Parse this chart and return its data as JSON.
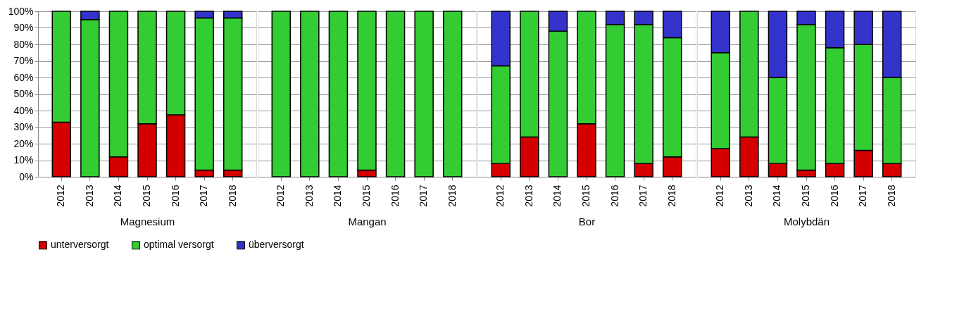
{
  "chart_data": [
    {
      "type": "bar",
      "stacked": true,
      "xlabel": "Magnesium",
      "categories": [
        "2012",
        "2013",
        "2014",
        "2015",
        "2016",
        "2017",
        "2018"
      ],
      "ylim": [
        0,
        100
      ],
      "yticks": [
        {
          "value": 0,
          "label": "0%"
        },
        {
          "value": 10,
          "label": "10%"
        },
        {
          "value": 20,
          "label": "20%"
        },
        {
          "value": 30,
          "label": "30%"
        },
        {
          "value": 40,
          "label": "40%"
        },
        {
          "value": 50,
          "label": "50%"
        },
        {
          "value": 60,
          "label": "60%"
        },
        {
          "value": 70,
          "label": "70%"
        },
        {
          "value": 80,
          "label": "80%"
        },
        {
          "value": 90,
          "label": "90%"
        },
        {
          "value": 100,
          "label": "100%"
        }
      ],
      "grid": "y",
      "legend": "bottom",
      "series": [
        {
          "name": "unterversorgt",
          "color": "#d40000",
          "values": [
            33,
            null,
            12,
            32,
            37.5,
            4,
            4
          ]
        },
        {
          "name": "optimal versorgt",
          "color": "#33cc33",
          "values": [
            67,
            95,
            88,
            68,
            62.5,
            92,
            92
          ]
        },
        {
          "name": "überversorgt",
          "color": "#3333cc",
          "values": [
            null,
            5,
            null,
            null,
            null,
            4,
            4
          ]
        }
      ]
    },
    {
      "type": "bar",
      "stacked": true,
      "xlabel": "Mangan",
      "categories": [
        "2012",
        "2013",
        "2014",
        "2015",
        "2016",
        "2017",
        "2018"
      ],
      "ylim": [
        0,
        100
      ],
      "yticks": [
        0,
        10,
        20,
        30,
        40,
        50,
        60,
        70,
        80,
        90,
        100
      ],
      "grid": "y",
      "legend": "bottom",
      "tick_labels": "x",
      "series": [
        {
          "name": "unterversorgt",
          "color": "#d40000",
          "values": [
            null,
            null,
            null,
            4,
            null,
            null,
            null
          ]
        },
        {
          "name": "optimal versorgt",
          "color": "#33cc33",
          "values": [
            100,
            100,
            100,
            96,
            100,
            100,
            100
          ]
        },
        {
          "name": "überversorgt",
          "color": "#3333cc",
          "values": [
            null,
            null,
            null,
            null,
            null,
            null,
            null
          ]
        }
      ]
    },
    {
      "type": "bar",
      "stacked": true,
      "xlabel": "Bor",
      "categories": [
        "2012",
        "2013",
        "2014",
        "2015",
        "2016",
        "2017",
        "2018"
      ],
      "ylim": [
        0,
        100
      ],
      "yticks": [
        0,
        10,
        20,
        30,
        40,
        50,
        60,
        70,
        80,
        90,
        100
      ],
      "grid": "y",
      "legend": "bottom",
      "tick_labels": "x",
      "series": [
        {
          "name": "unterversorgt",
          "color": "#d40000",
          "values": [
            8,
            24,
            null,
            32,
            null,
            8,
            12
          ]
        },
        {
          "name": "optimal versorgt",
          "color": "#33cc33",
          "values": [
            59,
            76,
            88,
            68,
            92,
            84,
            72
          ]
        },
        {
          "name": "überversorgt",
          "color": "#3333cc",
          "values": [
            33,
            null,
            12,
            null,
            8,
            8,
            16
          ]
        }
      ]
    },
    {
      "type": "bar",
      "stacked": true,
      "xlabel": "Molybdän",
      "categories": [
        "2012",
        "2013",
        "2014",
        "2015",
        "2016",
        "2017",
        "2018"
      ],
      "ylim": [
        0,
        100
      ],
      "yticks": [
        0,
        10,
        20,
        30,
        40,
        50,
        60,
        70,
        80,
        90,
        100
      ],
      "grid": "y",
      "legend": "bottom",
      "tick_labels": "x",
      "series": [
        {
          "name": "unterversorgt",
          "color": "#d40000",
          "values": [
            17,
            24,
            8,
            4,
            8,
            16,
            8
          ]
        },
        {
          "name": "optimal versorgt",
          "color": "#33cc33",
          "values": [
            58,
            76,
            52,
            88,
            70,
            64,
            52
          ]
        },
        {
          "name": "überversorgt",
          "color": "#3333cc",
          "values": [
            25,
            null,
            40,
            8,
            22,
            20,
            40
          ]
        }
      ]
    }
  ]
}
